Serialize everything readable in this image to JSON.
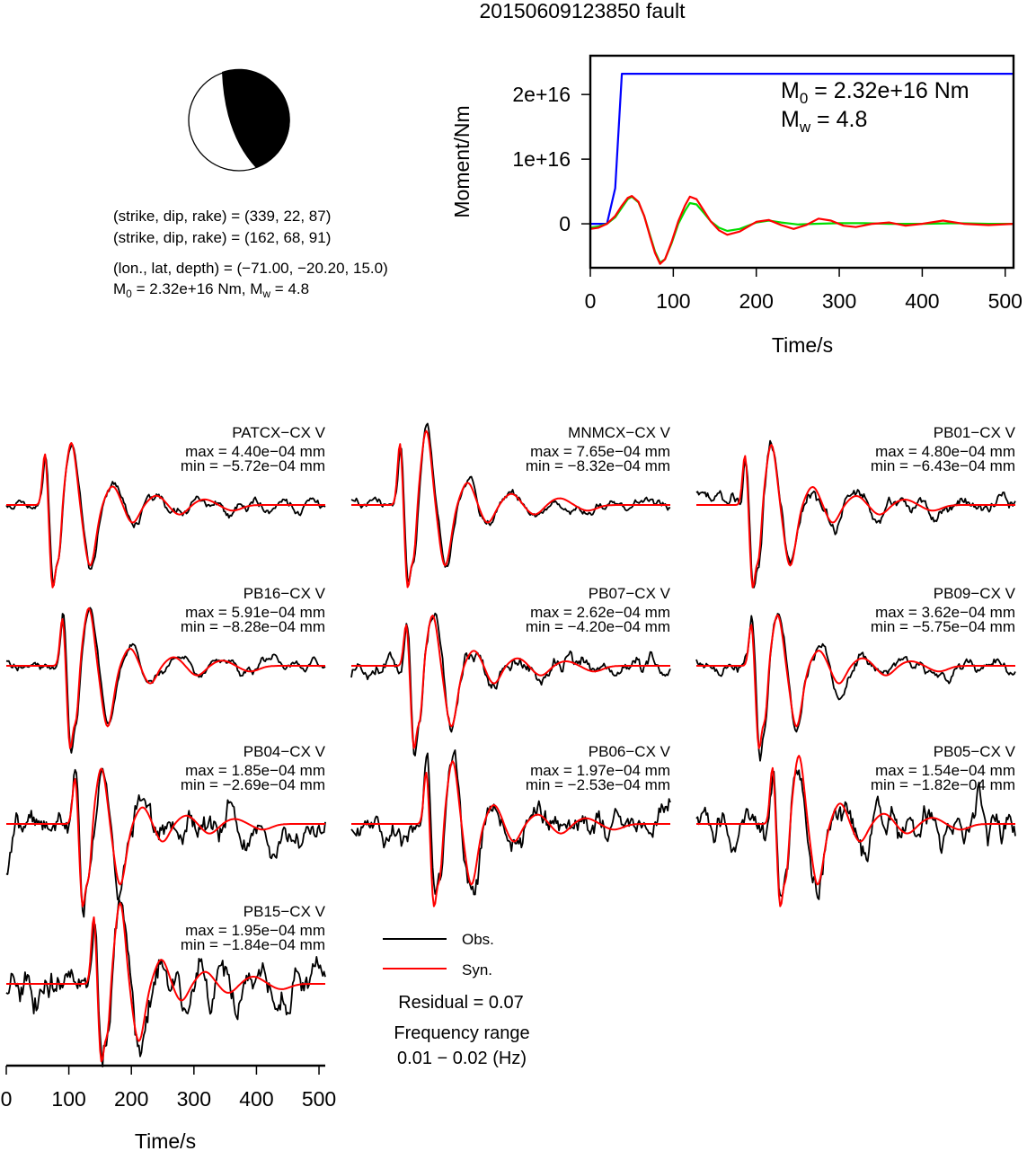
{
  "title": "20150609123850 fault",
  "mechanism": {
    "nodal_planes": [
      {
        "label": "(strike, dip, rake) = ",
        "values": "(339, 22, 87)"
      },
      {
        "label": "(strike, dip, rake) = ",
        "values": "(162, 68, 91)"
      }
    ],
    "location_label": "(lon., lat, depth) = ",
    "location_values": "(−71.00, −20.20, 15.0)",
    "moment_text": "2.32e+16 Nm",
    "mw_text": "4.8"
  },
  "chart_data": [
    {
      "type": "line",
      "name": "moment-rate-function",
      "xlabel": "Time/s",
      "ylabel": "Moment/Nm",
      "xlim": [
        0,
        510
      ],
      "ylim": [
        -6800000000000000.0,
        2.6e+16
      ],
      "xticks": [
        0,
        100,
        200,
        300,
        400,
        500
      ],
      "yticks": [
        {
          "value": 2e+16,
          "label": "2e+16"
        },
        {
          "value": 1e+16,
          "label": "1e+16"
        },
        {
          "value": 0,
          "label": "0"
        }
      ],
      "annotation": {
        "m0_value": "2.32e+16 Nm",
        "mw_value": "4.8"
      },
      "series": [
        {
          "color": "#0000ff",
          "x": [
            0,
            20,
            30,
            38,
            45,
            510
          ],
          "y": [
            0,
            0,
            5500000000000000.0,
            2.32e+16,
            2.32e+16,
            2.32e+16
          ]
        },
        {
          "color": "#00dd00",
          "x": [
            0,
            10,
            20,
            30,
            38,
            45,
            50,
            58,
            65,
            72,
            78,
            84,
            90,
            98,
            106,
            114,
            120,
            128,
            136,
            145,
            155,
            165,
            180,
            200,
            215,
            230,
            250,
            270,
            300,
            330,
            360,
            400,
            440,
            480,
            510
          ],
          "y": [
            -600000000000000.0,
            -400000000000000.0,
            0,
            1000000000000000.0,
            2500000000000000.0,
            3800000000000000.0,
            4200000000000000.0,
            3300000000000000.0,
            1200000000000000.0,
            -1800000000000000.0,
            -4300000000000000.0,
            -6000000000000000.0,
            -5500000000000000.0,
            -3000000000000000.0,
            0,
            2000000000000000.0,
            3200000000000000.0,
            3000000000000000.0,
            1800000000000000.0,
            400000000000000.0,
            -600000000000000.0,
            -1100000000000000.0,
            -800000000000000.0,
            200000000000000.0,
            500000000000000.0,
            200000000000000.0,
            -100000000000000.0,
            0,
            100000000000000.0,
            100000000000000.0,
            0,
            0,
            100000000000000.0,
            0,
            0
          ]
        },
        {
          "color": "#ff0000",
          "x": [
            0,
            10,
            20,
            30,
            38,
            45,
            50,
            58,
            65,
            72,
            78,
            84,
            90,
            98,
            106,
            114,
            120,
            128,
            136,
            145,
            155,
            165,
            180,
            200,
            215,
            230,
            245,
            260,
            275,
            290,
            305,
            320,
            340,
            360,
            380,
            400,
            425,
            450,
            480,
            510
          ],
          "y": [
            -800000000000000.0,
            -600000000000000.0,
            0,
            1200000000000000.0,
            2800000000000000.0,
            4000000000000000.0,
            4300000000000000.0,
            3400000000000000.0,
            1200000000000000.0,
            -2000000000000000.0,
            -4500000000000000.0,
            -6200000000000000.0,
            -5500000000000000.0,
            -2800000000000000.0,
            400000000000000.0,
            2800000000000000.0,
            4200000000000000.0,
            3800000000000000.0,
            2200000000000000.0,
            400000000000000.0,
            -1000000000000000.0,
            -1700000000000000.0,
            -1200000000000000.0,
            300000000000000.0,
            600000000000000.0,
            -200000000000000.0,
            -800000000000000.0,
            -200000000000000.0,
            800000000000000.0,
            500000000000000.0,
            -300000000000000.0,
            -500000000000000.0,
            0,
            200000000000000.0,
            -300000000000000.0,
            0,
            500000000000000.0,
            0,
            -200000000000000.0,
            0
          ]
        }
      ]
    },
    {
      "type": "line",
      "name": "waveform-comparison",
      "xlabel": "Time/s",
      "xlim": [
        0,
        510
      ],
      "xticks": [
        0,
        100,
        200,
        300,
        400,
        500
      ],
      "legend": {
        "observed": "Obs.",
        "synthetic": "Syn."
      },
      "residual_value": "0.07",
      "frequency_label": "Frequency range",
      "frequency_value": "0.01 − 0.02 (Hz)",
      "observed_color": "#000000",
      "synthetic_color": "#ff0000",
      "stations": [
        {
          "station": "PATCX−CX V",
          "max": "4.40e−04 mm",
          "min": "−5.72e−04 mm",
          "max_v": 0.00044,
          "min_v": -0.000572,
          "t0": 62,
          "noise": 0.1,
          "seed": 11
        },
        {
          "station": "MNMCX−CX V",
          "max": "7.65e−04 mm",
          "min": "−8.32e−04 mm",
          "max_v": 0.000765,
          "min_v": -0.000832,
          "t0": 78,
          "noise": 0.1,
          "seed": 23
        },
        {
          "station": "PB01−CX V",
          "max": "4.80e−04 mm",
          "min": "−6.43e−04 mm",
          "max_v": 0.00048,
          "min_v": -0.000643,
          "t0": 78,
          "noise": 0.14,
          "seed": 37
        },
        {
          "station": "PB16−CX V",
          "max": "5.91e−04 mm",
          "min": "−8.28e−04 mm",
          "max_v": 0.000591,
          "min_v": -0.000828,
          "t0": 90,
          "noise": 0.1,
          "seed": 41
        },
        {
          "station": "PB07−CX V",
          "max": "2.62e−04 mm",
          "min": "−4.20e−04 mm",
          "max_v": 0.000262,
          "min_v": -0.00042,
          "t0": 88,
          "noise": 0.16,
          "seed": 53
        },
        {
          "station": "PB09−CX V",
          "max": "3.62e−04 mm",
          "min": "−5.75e−04 mm",
          "max_v": 0.000362,
          "min_v": -0.000575,
          "t0": 88,
          "noise": 0.12,
          "seed": 67
        },
        {
          "station": "PB04−CX V",
          "max": "1.85e−04 mm",
          "min": "−2.69e−04 mm",
          "max_v": 0.000185,
          "min_v": -0.000269,
          "t0": 110,
          "noise": 0.3,
          "seed": 71
        },
        {
          "station": "PB06−CX V",
          "max": "1.97e−04 mm",
          "min": "−2.53e−04 mm",
          "max_v": 0.000197,
          "min_v": -0.000253,
          "t0": 120,
          "noise": 0.26,
          "seed": 83
        },
        {
          "station": "PB05−CX V",
          "max": "1.54e−04 mm",
          "min": "−1.82e−04 mm",
          "max_v": 0.000154,
          "min_v": -0.000182,
          "t0": 122,
          "noise": 0.34,
          "seed": 97
        },
        {
          "station": "PB15−CX V",
          "max": "1.95e−04 mm",
          "min": "−1.84e−04 mm",
          "max_v": 0.000195,
          "min_v": -0.000184,
          "t0": 140,
          "noise": 0.36,
          "seed": 101
        }
      ]
    }
  ]
}
